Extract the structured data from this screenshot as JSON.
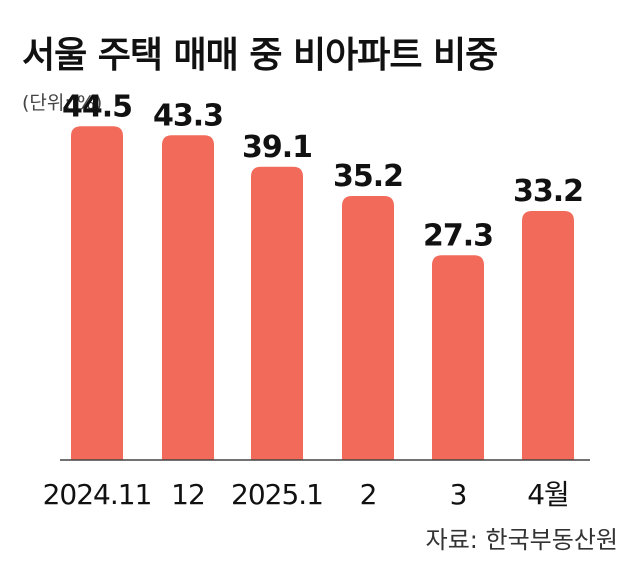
{
  "header": {
    "title": "서울 주택 매매 중 비아파트 비중",
    "unit": "(단위: %)"
  },
  "footer": {
    "source": "자료:  한국부동산원"
  },
  "colors": {
    "bar": "#f26a5a",
    "baseline": "#444444"
  },
  "chart_data": {
    "type": "bar",
    "title": "서울 주택 매매 중 비아파트 비중",
    "xlabel": "",
    "ylabel": "",
    "unit": "(단위: %)",
    "categories": [
      "2024.11",
      "12",
      "2025.1",
      "2",
      "3",
      "4월"
    ],
    "values": [
      44.5,
      43.3,
      39.1,
      35.2,
      27.3,
      33.2
    ],
    "value_labels": [
      "44.5",
      "43.3",
      "39.1",
      "35.2",
      "27.3",
      "33.2"
    ],
    "ylim": [
      0,
      48
    ],
    "grid": false,
    "legend": "none"
  }
}
